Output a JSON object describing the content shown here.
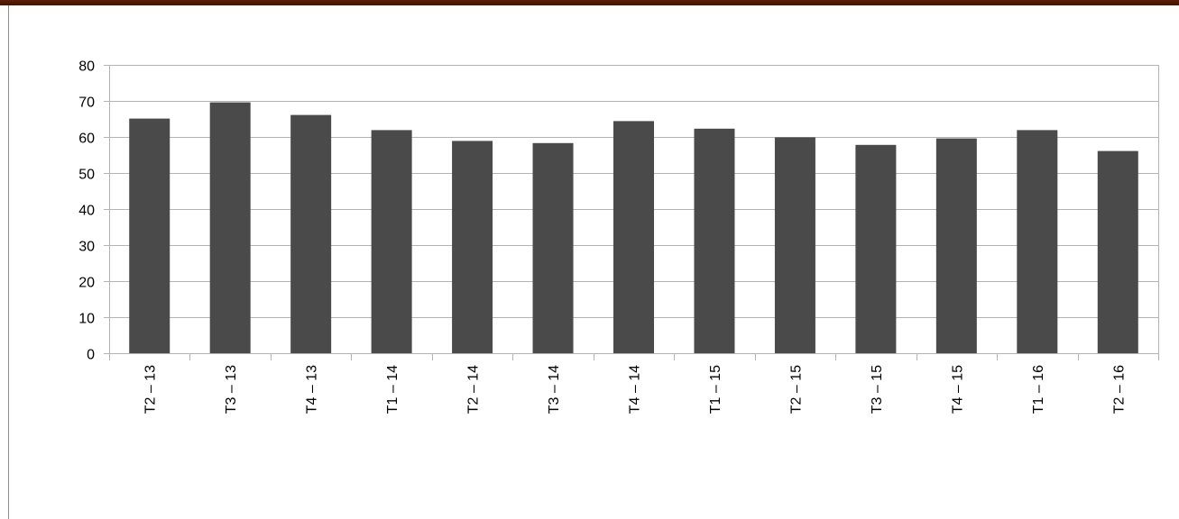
{
  "chart_data": {
    "type": "bar",
    "title": "",
    "xlabel": "",
    "ylabel": "",
    "categories": [
      "T2 – 13",
      "T3 – 13",
      "T4 – 13",
      "T1 – 14",
      "T2 – 14",
      "T3 – 14",
      "T4 – 14",
      "T1 – 15",
      "T2 – 15",
      "T3 – 15",
      "T4 – 15",
      "T1 – 16",
      "T2 – 16"
    ],
    "values": [
      65.1,
      69.6,
      66.1,
      61.9,
      58.9,
      58.3,
      64.4,
      62.3,
      59.9,
      57.8,
      59.6,
      61.9,
      56.1
    ],
    "ylim": [
      0,
      80
    ],
    "yticks": [
      0,
      10,
      20,
      30,
      40,
      50,
      60,
      70,
      80
    ],
    "grid": true,
    "legend": "none",
    "colors": {
      "bar": "#4a4a4a",
      "grid": "#b3b3b3",
      "axis": "#b3b3b3",
      "top_bar": "#4a1a06"
    }
  }
}
